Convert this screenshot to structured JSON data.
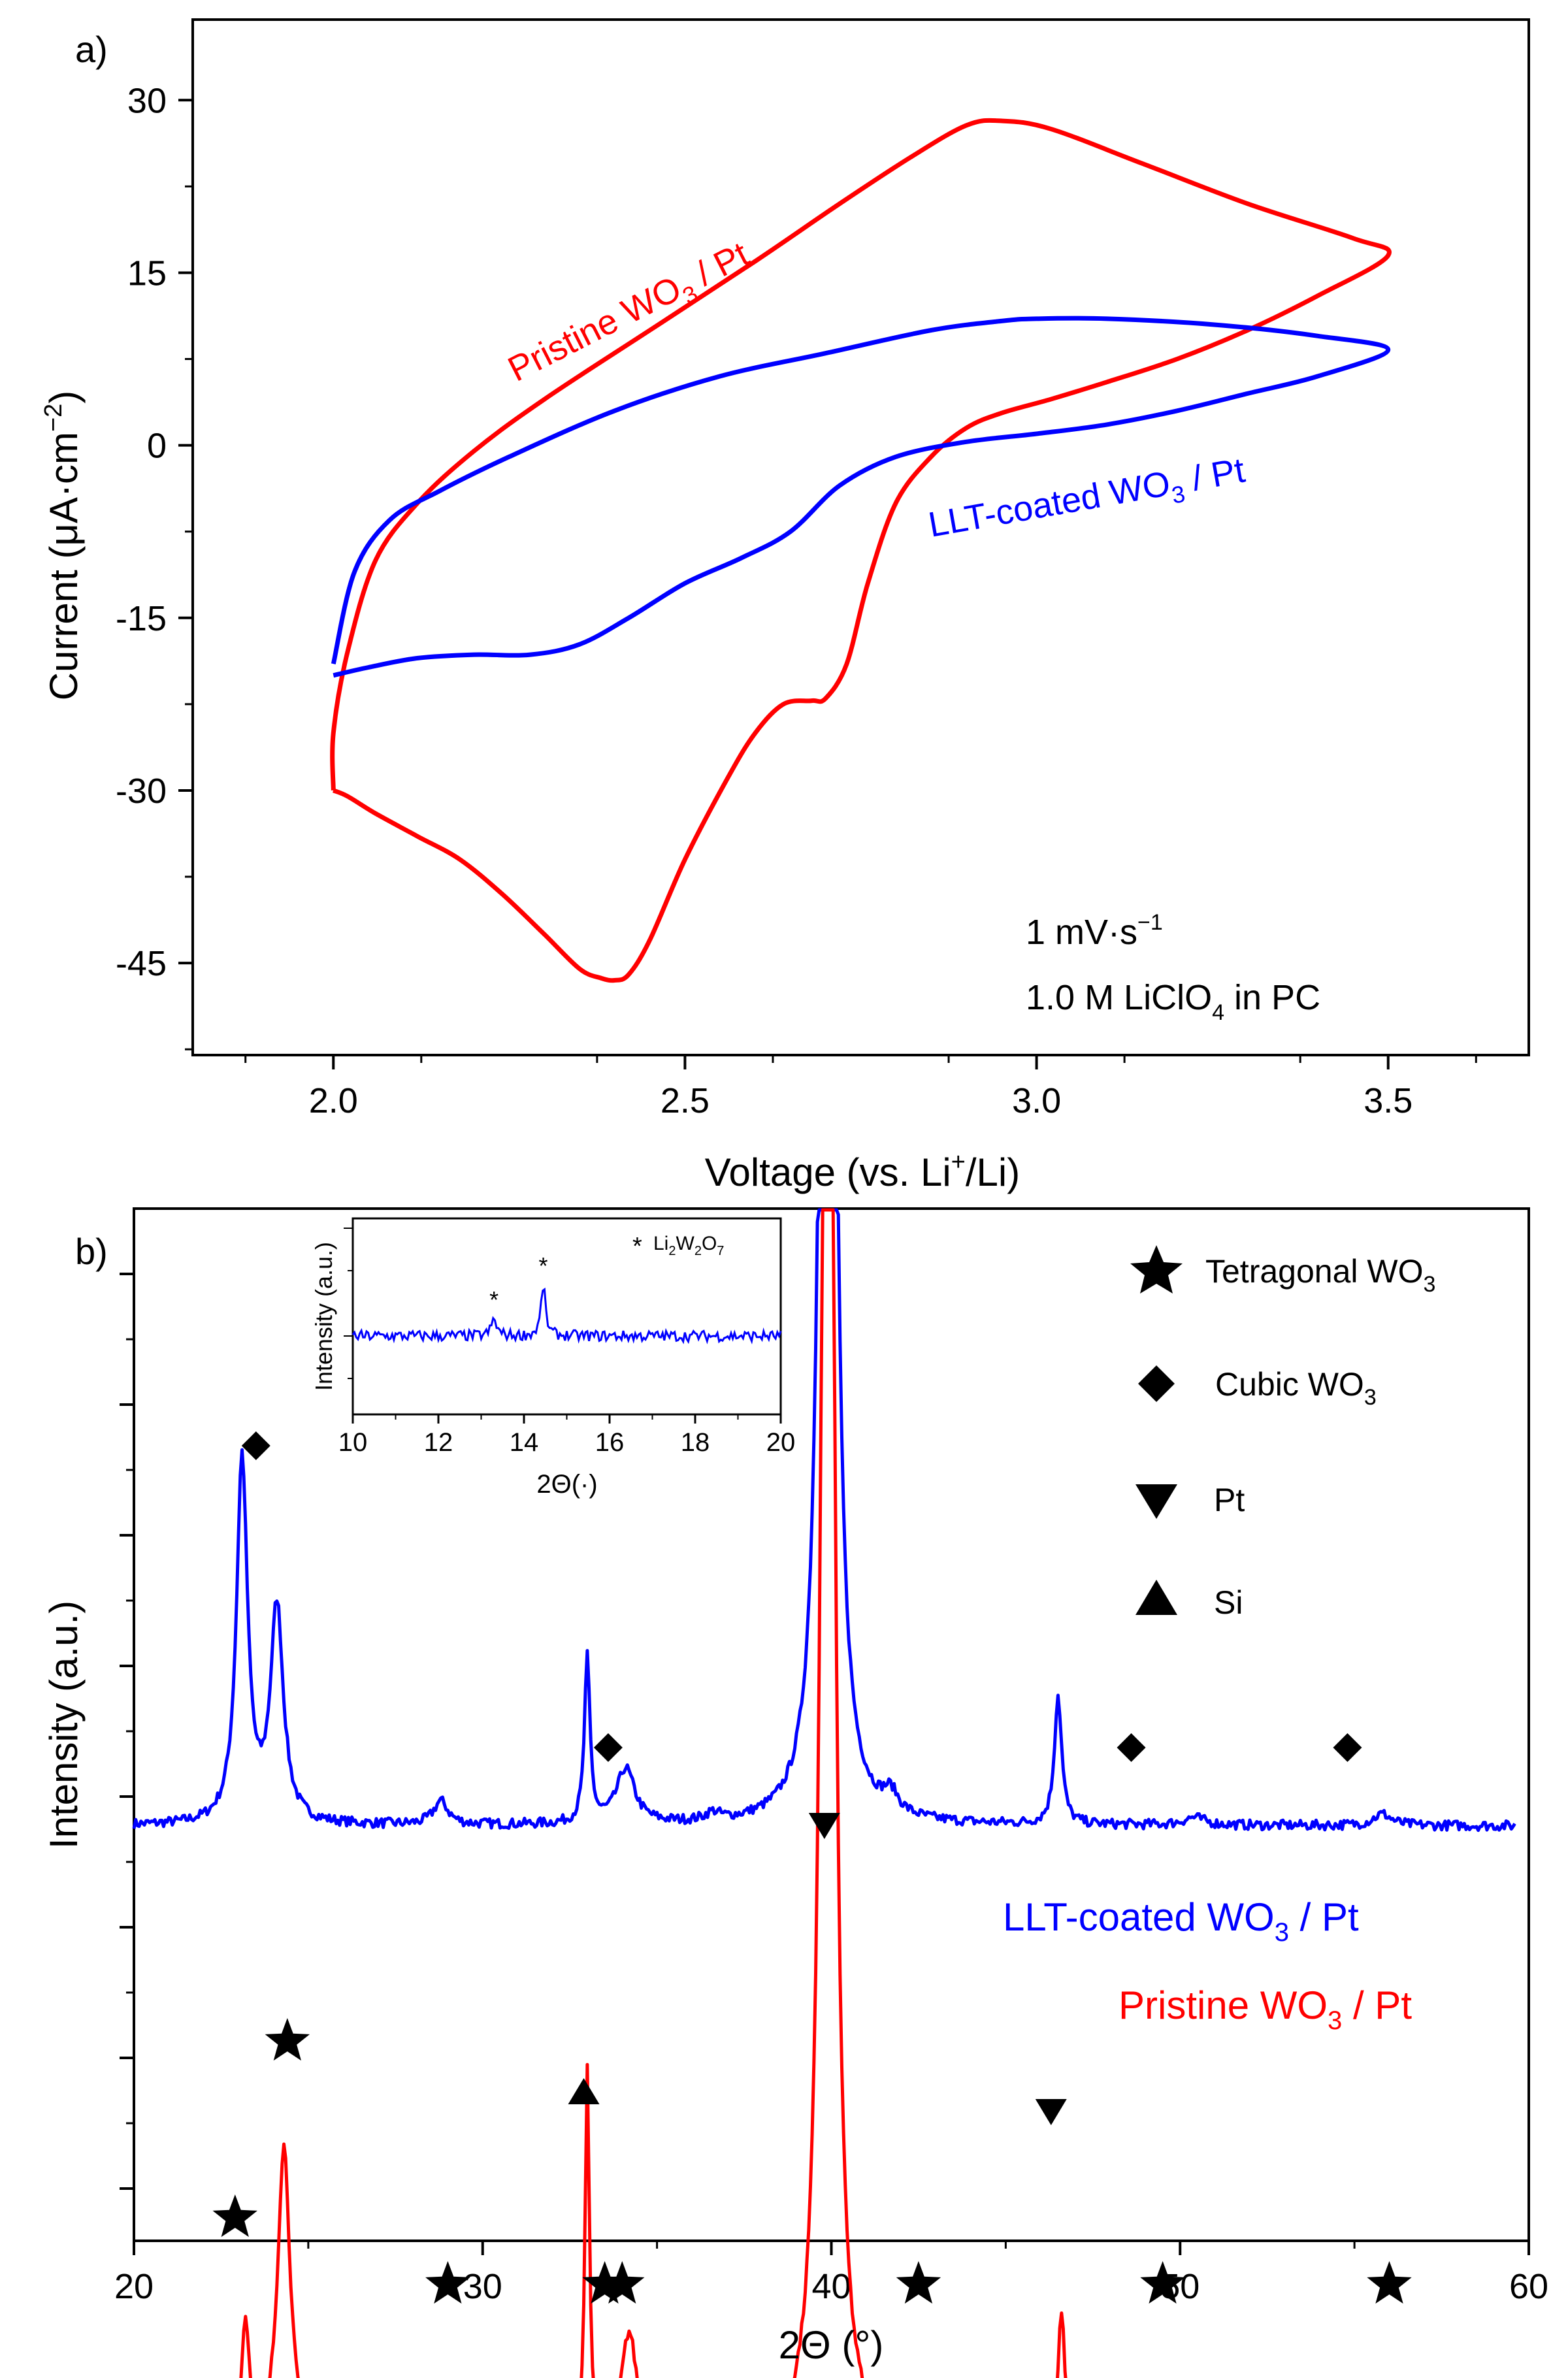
{
  "chart_data": [
    {
      "type": "line",
      "panel_label": "a)",
      "xlabel": "Voltage (vs. Li",
      "xlabel_sup": "+",
      "xlabel_tail": "/Li)",
      "ylabel": "Current (μA·cm",
      "ylabel_sup": "−2",
      "ylabel_tail": ")",
      "xlim": [
        1.8,
        3.7
      ],
      "ylim": [
        -53,
        37
      ],
      "xticks": [
        2.0,
        2.5,
        3.0,
        3.5
      ],
      "xtick_labels": [
        "2.0",
        "2.5",
        "3.0",
        "3.5"
      ],
      "yticks": [
        30,
        15,
        0,
        -15,
        -30,
        -45
      ],
      "ytick_labels": [
        "30",
        "15",
        "0",
        "-15",
        "-30",
        "-45"
      ],
      "annotation_rate": "1 mV·s",
      "annotation_rate_sup": "−1",
      "annotation_elec_a": "1.0 M LiClO",
      "annotation_elec_sub": "4",
      "annotation_elec_b": " in PC",
      "series": [
        {
          "name": "Pristine WO3 / Pt",
          "label_main": "Pristine WO",
          "label_sub": "3",
          "label_tail": " / Pt",
          "color": "#ff0000",
          "x": [
            2.0,
            2.02,
            2.06,
            2.12,
            2.18,
            2.24,
            2.3,
            2.35,
            2.38,
            2.4,
            2.42,
            2.45,
            2.5,
            2.56,
            2.6,
            2.64,
            2.68,
            2.7,
            2.73,
            2.76,
            2.8,
            2.85,
            2.9,
            2.95,
            3.02,
            3.1,
            3.2,
            3.3,
            3.4,
            3.5,
            3.45,
            3.3,
            3.15,
            3.02,
            2.95,
            2.9,
            2.82,
            2.72,
            2.6,
            2.45,
            2.3,
            2.2,
            2.12,
            2.06,
            2.02,
            2.0,
            2.0
          ],
          "y": [
            -30,
            -30.5,
            -32,
            -34,
            -36,
            -39,
            -42.5,
            -45.5,
            -46.3,
            -46.5,
            -46,
            -43,
            -36,
            -29,
            -25,
            -22.5,
            -22.2,
            -22,
            -19,
            -12,
            -5,
            -1,
            1.5,
            2.8,
            4,
            5.5,
            7.5,
            10,
            13,
            16.5,
            18,
            21,
            24.5,
            27.5,
            28.2,
            27.8,
            25,
            21,
            16,
            10,
            4,
            -0.5,
            -5,
            -10,
            -18,
            -25,
            -30
          ]
        },
        {
          "name": "LLT-coated WO3 / Pt",
          "label_main": "LLT-coated WO",
          "label_sub": "3",
          "label_tail": " / Pt",
          "color": "#0000ff",
          "x": [
            2.0,
            2.05,
            2.12,
            2.2,
            2.28,
            2.35,
            2.42,
            2.5,
            2.58,
            2.65,
            2.72,
            2.8,
            2.9,
            3.0,
            3.1,
            3.2,
            3.3,
            3.4,
            3.5,
            3.4,
            3.25,
            3.1,
            3.0,
            2.95,
            2.85,
            2.7,
            2.55,
            2.4,
            2.25,
            2.15,
            2.08,
            2.03,
            2.0
          ],
          "y": [
            -20,
            -19.3,
            -18.5,
            -18.2,
            -18.2,
            -17.3,
            -15,
            -12,
            -9.8,
            -7.5,
            -3.5,
            -1,
            0.3,
            1,
            1.8,
            3,
            4.5,
            6,
            8.3,
            9.5,
            10.5,
            11,
            11,
            10.8,
            10,
            8,
            6,
            3,
            -1,
            -4,
            -6.5,
            -11,
            -19
          ]
        }
      ]
    },
    {
      "type": "line",
      "panel_label": "b)",
      "xlabel": "2Θ (°)",
      "ylabel": "Intensity (a.u.)",
      "xlim": [
        20,
        60
      ],
      "xticks": [
        20,
        30,
        40,
        50,
        60
      ],
      "xtick_labels": [
        "20",
        "30",
        "40",
        "50",
        "60"
      ],
      "series": [
        {
          "name": "LLT-coated WO3 / Pt",
          "label_main": "LLT-coated WO",
          "label_sub": "3",
          "label_tail": " / Pt",
          "color": "#0000ff",
          "baseline": 0,
          "peaks": [
            [
              23.1,
              0.93,
              0.3
            ],
            [
              24.1,
              0.55,
              0.35
            ],
            [
              28.8,
              0.06,
              0.4
            ],
            [
              33.0,
              0.42,
              0.15
            ],
            [
              34.1,
              0.14,
              0.5
            ],
            [
              36.6,
              0.02,
              0.4
            ],
            [
              39.9,
              6.0,
              0.28
            ],
            [
              41.7,
              0.05,
              0.4
            ],
            [
              46.5,
              0.33,
              0.2
            ],
            [
              50.4,
              0.02,
              0.6
            ],
            [
              55.8,
              0.03,
              0.5
            ]
          ],
          "x_end": 59.6
        },
        {
          "name": "Pristine WO3 / Pt",
          "label_main": "Pristine WO",
          "label_sub": "3",
          "label_tail": " / Pt",
          "color": "#ff0000",
          "baseline": -1.6,
          "peaks": [
            [
              23.2,
              0.32,
              0.22
            ],
            [
              24.3,
              0.78,
              0.35
            ],
            [
              27.7,
              0.02,
              0.5
            ],
            [
              29.0,
              0.04,
              0.4
            ],
            [
              33.0,
              0.97,
              0.12
            ],
            [
              34.2,
              0.3,
              0.45
            ],
            [
              39.9,
              6.0,
              0.28
            ],
            [
              41.8,
              0.05,
              0.4
            ],
            [
              46.6,
              0.35,
              0.2
            ],
            [
              49.6,
              0.04,
              0.5
            ],
            [
              55.6,
              0.06,
              0.6
            ]
          ],
          "x_end": 60
        }
      ],
      "markers": {
        "tetragonal": [
          [
            22.9,
            -1.0
          ],
          [
            24.4,
            -0.55
          ],
          [
            29.0,
            -1.17
          ],
          [
            33.5,
            -1.17
          ],
          [
            34.0,
            -1.17
          ],
          [
            42.5,
            -1.17
          ],
          [
            49.5,
            -1.17
          ],
          [
            56.0,
            -1.17
          ]
        ],
        "cubic": [
          [
            23.5,
            0.97
          ],
          [
            33.6,
            0.2
          ],
          [
            48.6,
            0.2
          ],
          [
            54.8,
            0.2
          ]
        ],
        "pt": [
          [
            39.8,
            0.0
          ],
          [
            46.3,
            -0.73
          ]
        ],
        "si": [
          [
            32.9,
            -0.68
          ]
        ]
      },
      "legend": {
        "tetragonal_main": "Tetragonal WO",
        "tetragonal_sub": "3",
        "cubic_main": "Cubic WO",
        "cubic_sub": "3",
        "pt": "Pt",
        "si": "Si"
      },
      "inset": {
        "xlabel": "2Θ(·)",
        "ylabel": "Intensity (a.u.)",
        "xlim": [
          10,
          20
        ],
        "xticks": [
          10,
          12,
          14,
          16,
          18,
          20
        ],
        "xtick_labels": [
          "10",
          "12",
          "14",
          "16",
          "18",
          "20"
        ],
        "peaks": [
          [
            13.3,
            0.18,
            0.12
          ],
          [
            14.45,
            0.55,
            0.1
          ]
        ],
        "asterisks_x": [
          13.3,
          14.45
        ],
        "legend_main": "Li",
        "legend_sub1": "2",
        "legend_mid": "W",
        "legend_sub2": "2",
        "legend_tail": "O",
        "legend_sub3": "7",
        "color": "#0000ff"
      }
    }
  ]
}
